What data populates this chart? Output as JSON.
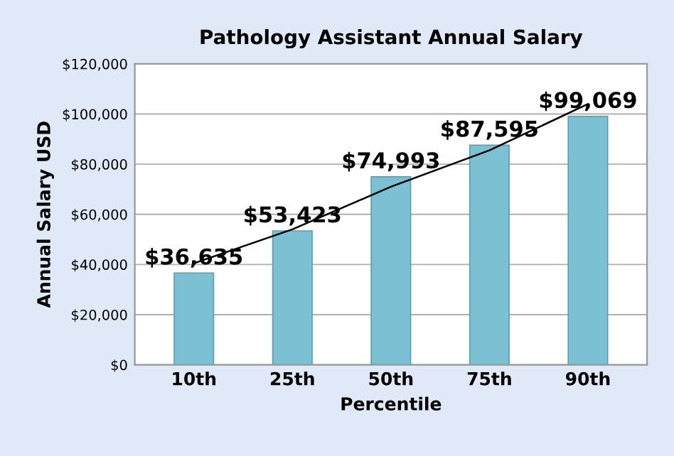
{
  "chart_data": {
    "type": "bar",
    "title": "Pathology Assistant Annual Salary",
    "xlabel": "Percentile",
    "ylabel": "Annual Salary USD",
    "categories": [
      "10th",
      "25th",
      "50th",
      "75th",
      "90th"
    ],
    "series": [
      {
        "color": "#7cc0d4",
        "values": [
          36635,
          53423,
          74993,
          87595,
          99069
        ],
        "value_labels": [
          "$36,635",
          "$53,423",
          "$74,993",
          "$87,595",
          "$99,069"
        ]
      },
      {
        "type": "line",
        "color": "#000000",
        "x": [
          "10th",
          "25th",
          "50th",
          "75th",
          "90th"
        ],
        "values": [
          40500,
          54000,
          71000,
          85500,
          104000
        ]
      }
    ],
    "ylim": [
      0,
      120000
    ],
    "yticks": [
      {
        "value": 0,
        "label": "$0"
      },
      {
        "value": 20000,
        "label": "$20,000"
      },
      {
        "value": 40000,
        "label": "$40,000"
      },
      {
        "value": 60000,
        "label": "$60,000"
      },
      {
        "value": 80000,
        "label": "$80,000"
      },
      {
        "value": 100000,
        "label": "$100,000"
      },
      {
        "value": 120000,
        "label": "$120,000"
      }
    ],
    "grid": "y"
  }
}
